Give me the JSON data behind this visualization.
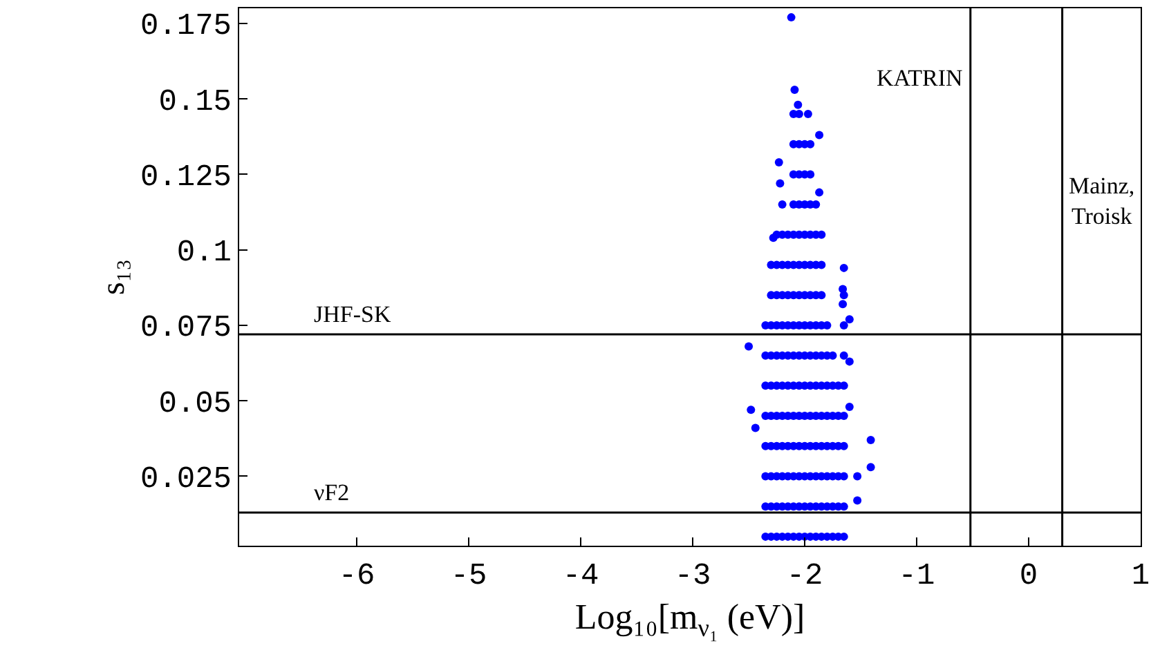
{
  "chart_data": {
    "type": "scatter",
    "xlabel": "Log₁₀[m$_{ν₁}$ (eV)]",
    "ylabel": "s₁₃",
    "xlim": [
      -7.05,
      1
    ],
    "xticks": [
      -6,
      -5,
      -4,
      -3,
      -2,
      -1,
      0,
      1
    ],
    "ylim": [
      0.002,
      0.18
    ],
    "yticks": [
      0.025,
      0.05,
      0.075,
      0.1,
      0.125,
      0.15,
      0.175
    ],
    "marker": "circle",
    "series": [
      {
        "color": "#0000ff",
        "x": [
          -2.12,
          -2.09,
          -2.06,
          -1.97,
          -1.87,
          -2.23,
          -2.22,
          -1.87,
          -2.28,
          -1.65,
          -1.66,
          -1.66,
          -1.6,
          -2.5,
          -2.48,
          -2.44,
          -1.41,
          -1.41,
          -1.53,
          -1.53,
          -1.6,
          -1.6
        ],
        "values": [
          0.177,
          0.153,
          0.148,
          0.145,
          0.138,
          0.129,
          0.122,
          0.119,
          0.104,
          0.094,
          0.087,
          0.082,
          0.077,
          0.068,
          0.047,
          0.041,
          0.037,
          0.028,
          0.025,
          0.017,
          0.048,
          0.063
        ]
      },
      {
        "color": "#0000ff",
        "x": [
          -2.35,
          -2.35,
          -2.35,
          -2.35,
          -2.35,
          -2.35,
          -2.35,
          -2.35
        ],
        "values": [
          0.005,
          0.015,
          0.025,
          0.035,
          0.045,
          0.055,
          0.065,
          0.075
        ]
      },
      {
        "color": "#0000ff",
        "x": [
          -2.3,
          -2.3,
          -2.3,
          -2.3,
          -2.3,
          -2.3,
          -2.3,
          -2.3,
          -2.3,
          -2.3
        ],
        "values": [
          0.005,
          0.015,
          0.025,
          0.035,
          0.045,
          0.055,
          0.065,
          0.075,
          0.085,
          0.095
        ]
      },
      {
        "color": "#0000ff",
        "x": [
          -2.25,
          -2.25,
          -2.25,
          -2.25,
          -2.25,
          -2.25,
          -2.25,
          -2.25,
          -2.25,
          -2.25,
          -2.25
        ],
        "values": [
          0.005,
          0.015,
          0.025,
          0.035,
          0.045,
          0.055,
          0.065,
          0.075,
          0.085,
          0.095,
          0.105
        ]
      },
      {
        "color": "#0000ff",
        "x": [
          -2.2,
          -2.2,
          -2.2,
          -2.2,
          -2.2,
          -2.2,
          -2.2,
          -2.2,
          -2.2,
          -2.2,
          -2.2,
          -2.2
        ],
        "values": [
          0.005,
          0.015,
          0.025,
          0.035,
          0.045,
          0.055,
          0.065,
          0.075,
          0.085,
          0.095,
          0.105,
          0.115
        ]
      },
      {
        "color": "#0000ff",
        "x": [
          -2.15,
          -2.15,
          -2.15,
          -2.15,
          -2.15,
          -2.15,
          -2.15,
          -2.15,
          -2.15,
          -2.15,
          -2.15
        ],
        "values": [
          0.005,
          0.015,
          0.025,
          0.035,
          0.045,
          0.055,
          0.065,
          0.075,
          0.085,
          0.095,
          0.105
        ]
      },
      {
        "color": "#0000ff",
        "x": [
          -2.1,
          -2.1,
          -2.1,
          -2.1,
          -2.1,
          -2.1,
          -2.1,
          -2.1,
          -2.1,
          -2.1,
          -2.1,
          -2.1,
          -2.1,
          -2.1,
          -2.1
        ],
        "values": [
          0.005,
          0.015,
          0.025,
          0.035,
          0.045,
          0.055,
          0.065,
          0.075,
          0.085,
          0.095,
          0.105,
          0.115,
          0.125,
          0.135,
          0.145
        ]
      },
      {
        "color": "#0000ff",
        "x": [
          -2.05,
          -2.05,
          -2.05,
          -2.05,
          -2.05,
          -2.05,
          -2.05,
          -2.05,
          -2.05,
          -2.05,
          -2.05,
          -2.05,
          -2.05,
          -2.05,
          -2.05
        ],
        "values": [
          0.005,
          0.015,
          0.025,
          0.035,
          0.045,
          0.055,
          0.065,
          0.075,
          0.085,
          0.095,
          0.105,
          0.115,
          0.125,
          0.135,
          0.145
        ]
      },
      {
        "color": "#0000ff",
        "x": [
          -2.0,
          -2.0,
          -2.0,
          -2.0,
          -2.0,
          -2.0,
          -2.0,
          -2.0,
          -2.0,
          -2.0,
          -2.0,
          -2.0,
          -2.0,
          -2.0
        ],
        "values": [
          0.005,
          0.015,
          0.025,
          0.035,
          0.045,
          0.055,
          0.065,
          0.075,
          0.085,
          0.095,
          0.105,
          0.115,
          0.125,
          0.135
        ]
      },
      {
        "color": "#0000ff",
        "x": [
          -1.95,
          -1.95,
          -1.95,
          -1.95,
          -1.95,
          -1.95,
          -1.95,
          -1.95,
          -1.95,
          -1.95,
          -1.95,
          -1.95,
          -1.95,
          -1.95
        ],
        "values": [
          0.005,
          0.015,
          0.025,
          0.035,
          0.045,
          0.055,
          0.065,
          0.075,
          0.085,
          0.095,
          0.105,
          0.115,
          0.125,
          0.135
        ]
      },
      {
        "color": "#0000ff",
        "x": [
          -1.9,
          -1.9,
          -1.9,
          -1.9,
          -1.9,
          -1.9,
          -1.9,
          -1.9,
          -1.9,
          -1.9,
          -1.9,
          -1.9
        ],
        "values": [
          0.005,
          0.015,
          0.025,
          0.035,
          0.045,
          0.055,
          0.065,
          0.075,
          0.085,
          0.095,
          0.105,
          0.115
        ]
      },
      {
        "color": "#0000ff",
        "x": [
          -1.85,
          -1.85,
          -1.85,
          -1.85,
          -1.85,
          -1.85,
          -1.85,
          -1.85,
          -1.85,
          -1.85,
          -1.85
        ],
        "values": [
          0.005,
          0.015,
          0.025,
          0.035,
          0.045,
          0.055,
          0.065,
          0.075,
          0.085,
          0.095,
          0.105
        ]
      },
      {
        "color": "#0000ff",
        "x": [
          -1.8,
          -1.8,
          -1.8,
          -1.8,
          -1.8,
          -1.8,
          -1.8,
          -1.8
        ],
        "values": [
          0.005,
          0.015,
          0.025,
          0.035,
          0.045,
          0.055,
          0.065,
          0.075
        ]
      },
      {
        "color": "#0000ff",
        "x": [
          -1.75,
          -1.75,
          -1.75,
          -1.75,
          -1.75,
          -1.75,
          -1.75
        ],
        "values": [
          0.005,
          0.015,
          0.025,
          0.035,
          0.045,
          0.055,
          0.065
        ]
      },
      {
        "color": "#0000ff",
        "x": [
          -1.7,
          -1.7,
          -1.7,
          -1.7,
          -1.7,
          -1.7
        ],
        "values": [
          0.005,
          0.015,
          0.025,
          0.035,
          0.045,
          0.055
        ]
      },
      {
        "color": "#0000ff",
        "x": [
          -1.65,
          -1.65,
          -1.65,
          -1.65,
          -1.65,
          -1.65,
          -1.65,
          -1.65,
          -1.65
        ],
        "values": [
          0.005,
          0.015,
          0.025,
          0.035,
          0.045,
          0.055,
          0.065,
          0.075,
          0.085
        ]
      }
    ],
    "ref_lines": [
      {
        "axis": "y",
        "value": 0.072,
        "label": "JHF-SK",
        "color": "#000000",
        "line_style": "solid"
      },
      {
        "axis": "y",
        "value": 0.013,
        "label": "νF2",
        "color": "#000000",
        "line_style": "solid"
      },
      {
        "axis": "x",
        "value": -0.52,
        "label": "KATRIN",
        "color": "#000000",
        "line_style": "solid"
      },
      {
        "axis": "x",
        "value": 0.3,
        "label": "Mainz,\nTroisk",
        "color": "#000000",
        "line_style": "solid"
      }
    ]
  }
}
